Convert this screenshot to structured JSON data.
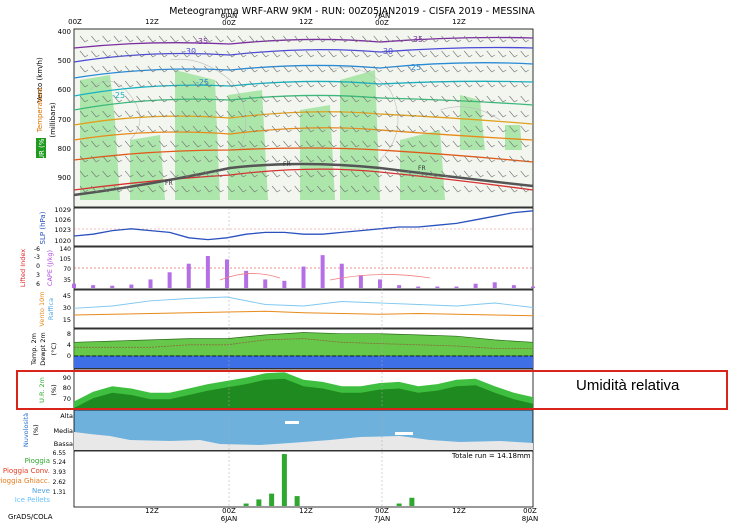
{
  "title": "Meteogramma WRF-ARW 9KM - RUN: 00Z05JAN2019 - CISFA 2019 - MESSINA",
  "time_axis": {
    "top_labels": [
      "00Z",
      "12Z",
      "6JAN",
      "00Z",
      "12Z",
      "7JAN",
      "00Z",
      "12Z"
    ],
    "bottom_labels": [
      "12Z",
      "00Z",
      "12Z",
      "00Z",
      "12Z",
      "00Z"
    ],
    "bottom_dates": [
      "6JAN",
      "7JAN",
      "8JAN"
    ],
    "total_hours": 72
  },
  "footer_left": "GrADS/COLA",
  "annotation": "Umidità relativa",
  "annotation_color": "#d9241b",
  "panels": {
    "profile": {
      "ylabels": [
        "Vento (km/h)",
        "Temperatura",
        "UR (%)",
        "(millibars)"
      ],
      "yticks": [
        400,
        500,
        600,
        700,
        800,
        900
      ],
      "isotherm_labels": [
        "-35",
        "-30",
        "-25",
        "-20",
        "-25",
        "-15",
        "-10",
        "-5",
        "-35",
        "-30",
        "-25",
        "-20",
        "-15",
        "-10",
        "-5",
        "0"
      ],
      "freezing_label": "FR"
    },
    "slp": {
      "ylabel": "SLP (hPa)",
      "yticks": [
        "1029",
        "1026",
        "1023",
        "1020"
      ]
    },
    "cape": {
      "ylabels": [
        "Lifted Index",
        "CAPE (J/kg)"
      ],
      "yticks_right": [
        "140",
        "105",
        "70",
        "35"
      ],
      "yticks_left": [
        "-6",
        "-3",
        "0",
        "3",
        "6"
      ]
    },
    "wind": {
      "ylabels": [
        "Vento 10m",
        "Raffica"
      ],
      "yticks": [
        "45",
        "30",
        "15"
      ]
    },
    "temp": {
      "ylabels": [
        "Temp. 2m",
        "Dewpt 2m"
      ],
      "unit": "(°C)",
      "yticks": [
        "8",
        "4",
        "0"
      ]
    },
    "rh": {
      "ylabel": "U.R. 2m",
      "unit": "(%)",
      "yticks": [
        "90",
        "80",
        "70"
      ]
    },
    "cloud": {
      "ylabel": "Nuvolosità",
      "unit": "(%)",
      "levels": [
        "Alta",
        "Media",
        "Bassa"
      ]
    },
    "precip": {
      "total_label": "Totale run = 14.18mm",
      "yticks": [
        "6.55",
        "5.24",
        "3.93",
        "2.62",
        "1.31"
      ],
      "legend": [
        {
          "label": "Pioggia",
          "color": "#2ea82e"
        },
        {
          "label": "Pioggia Conv.",
          "color": "#e23c20"
        },
        {
          "label": "Pioggia Ghiacc.",
          "color": "#e87b1c"
        },
        {
          "label": "Neve",
          "color": "#4fa3e0"
        },
        {
          "label": "Ice Pellets",
          "color": "#66c2ff"
        }
      ]
    }
  },
  "chart_data": [
    {
      "type": "line",
      "title": "SLP (hPa)",
      "ylim": [
        1019,
        1029
      ],
      "x": [
        0,
        3,
        6,
        9,
        12,
        15,
        18,
        21,
        24,
        27,
        30,
        33,
        36,
        39,
        42,
        45,
        48,
        51,
        54,
        57,
        60,
        63,
        66,
        69,
        72
      ],
      "series": [
        {
          "name": "SLP",
          "values": [
            1021.5,
            1022,
            1023,
            1023.5,
            1023,
            1022.5,
            1021,
            1020.5,
            1021,
            1022,
            1022.5,
            1022.5,
            1022,
            1022,
            1022.5,
            1023,
            1023.5,
            1024,
            1024,
            1024.5,
            1025,
            1026,
            1027,
            1028,
            1028.5
          ]
        }
      ]
    },
    {
      "type": "bar",
      "title": "CAPE (J/kg)",
      "ylim": [
        0,
        140
      ],
      "x": [
        0,
        3,
        6,
        9,
        12,
        15,
        18,
        21,
        24,
        27,
        30,
        33,
        36,
        39,
        42,
        45,
        48,
        51,
        54,
        57,
        60,
        63,
        66,
        69,
        72
      ],
      "series": [
        {
          "name": "CAPE",
          "values": [
            15,
            10,
            8,
            12,
            30,
            55,
            85,
            112,
            100,
            60,
            30,
            25,
            75,
            115,
            85,
            45,
            30,
            10,
            5,
            5,
            5,
            15,
            20,
            10,
            5
          ]
        }
      ]
    },
    {
      "type": "line",
      "title": "Vento 10m / Raffica",
      "ylim": [
        0,
        48
      ],
      "x": [
        0,
        6,
        12,
        18,
        24,
        30,
        36,
        42,
        48,
        54,
        60,
        66,
        72
      ],
      "series": [
        {
          "name": "Vento 10m",
          "values": [
            16,
            17,
            18,
            19,
            20,
            21,
            19,
            18,
            17,
            18,
            17,
            16,
            15
          ]
        },
        {
          "name": "Raffica",
          "values": [
            25,
            28,
            35,
            38,
            40,
            30,
            28,
            34,
            32,
            30,
            28,
            32,
            26
          ]
        }
      ]
    },
    {
      "type": "area",
      "title": "Temp. 2m / Dewpt 2m (°C)",
      "ylim": [
        -5,
        10
      ],
      "x": [
        0,
        6,
        12,
        18,
        24,
        30,
        36,
        42,
        48,
        54,
        60,
        66,
        72
      ],
      "series": [
        {
          "name": "Temp. 2m",
          "values": [
            5,
            5.5,
            6,
            6.5,
            6.5,
            8,
            9,
            8.5,
            8.5,
            8,
            7.5,
            6,
            5
          ]
        },
        {
          "name": "Dewpt 2m",
          "values": [
            3,
            3,
            3,
            4,
            4,
            6,
            6.5,
            5,
            4.5,
            4,
            3.5,
            2.5,
            2.5
          ]
        }
      ]
    },
    {
      "type": "area",
      "title": "U.R. 2m (%)",
      "ylim": [
        60,
        95
      ],
      "x": [
        0,
        3,
        6,
        9,
        12,
        15,
        18,
        21,
        24,
        27,
        30,
        33,
        36,
        39,
        42,
        45,
        48,
        51,
        54,
        57,
        60,
        63,
        66,
        69,
        72
      ],
      "series": [
        {
          "name": "U.R. 2m",
          "values": [
            66,
            75,
            80,
            78,
            74,
            74,
            78,
            82,
            85,
            88,
            92,
            93,
            86,
            84,
            80,
            80,
            83,
            84,
            80,
            82,
            86,
            87,
            80,
            74,
            70
          ]
        }
      ]
    },
    {
      "type": "bar",
      "title": "Pioggia (mm)",
      "ylim": [
        0,
        6.55
      ],
      "x": [
        27,
        29,
        31,
        33,
        35,
        51,
        53
      ],
      "series": [
        {
          "name": "Pioggia",
          "values": [
            0.3,
            0.8,
            1.5,
            6.3,
            1.2,
            0.3,
            1.0
          ]
        }
      ]
    }
  ]
}
